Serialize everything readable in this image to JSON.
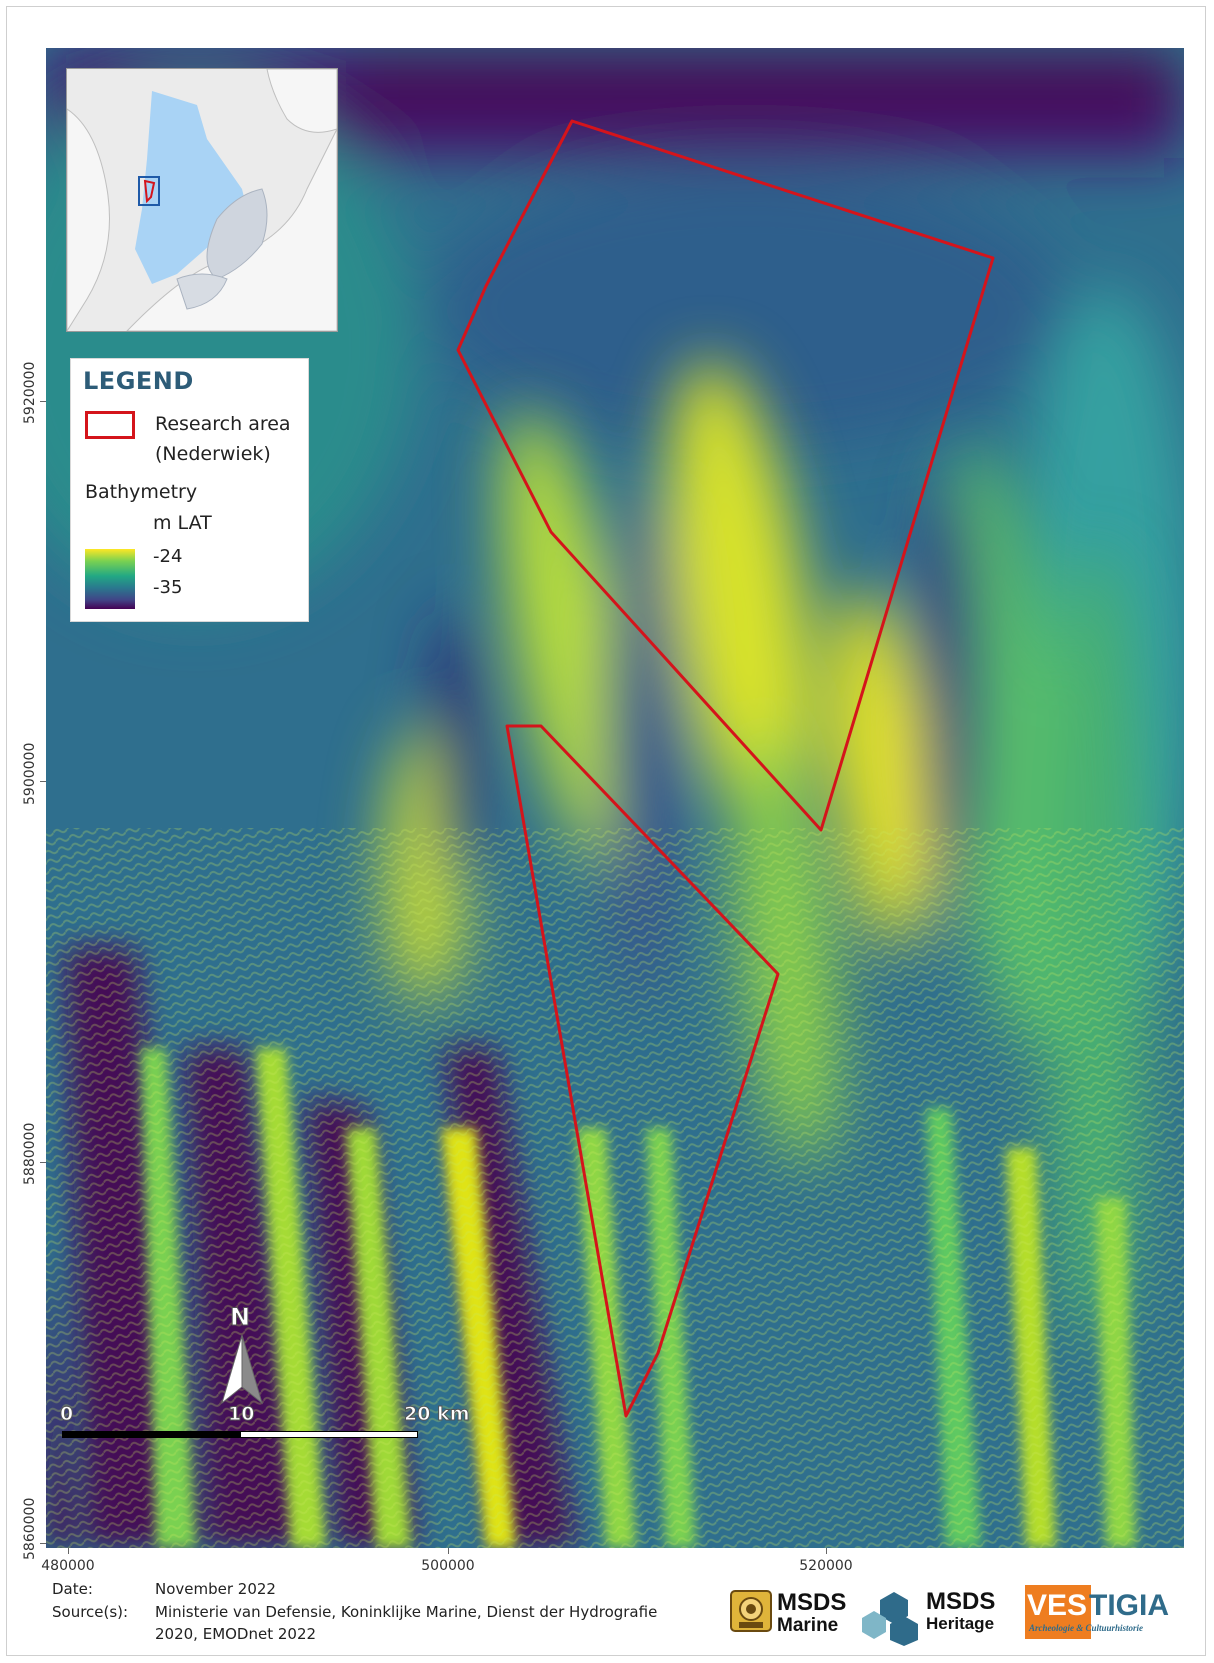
{
  "map": {
    "y_axis_labels": [
      "5920000",
      "5900000",
      "5880000",
      "5860000"
    ],
    "x_axis_labels": [
      "480000",
      "500000",
      "520000"
    ]
  },
  "legend": {
    "title": "LEGEND",
    "research_area_label": "Research area (Nederwiek)",
    "bathymetry_title": "Bathymetry",
    "bathymetry_unit": "m LAT",
    "ramp_high": "-24",
    "ramp_low": "-35"
  },
  "north_arrow": {
    "letter": "N"
  },
  "scale_bar": {
    "label_0": "0",
    "label_10": "10",
    "label_20": "20 km"
  },
  "footer": {
    "date_key": "Date:",
    "date_value": "November 2022",
    "source_key": "Source(s):",
    "source_value": "Ministerie van Defensie, Koninklijke Marine, Dienst der Hydrografie 2020, EMODnet 2022"
  },
  "logos": {
    "msds_marine_1": "MSDS",
    "msds_marine_2": "Marine",
    "msds_heritage_1": "MSDS",
    "msds_heritage_2": "Heritage",
    "vestigia_1": "VES",
    "vestigia_2": "TIGIA",
    "vestigia_sub": "Archeologie & Cultuurhistorie"
  },
  "colors": {
    "research_outline": "#d4141b",
    "ramp_high": "#fde725",
    "ramp_low": "#440154",
    "legend_title": "#2d5c78"
  }
}
